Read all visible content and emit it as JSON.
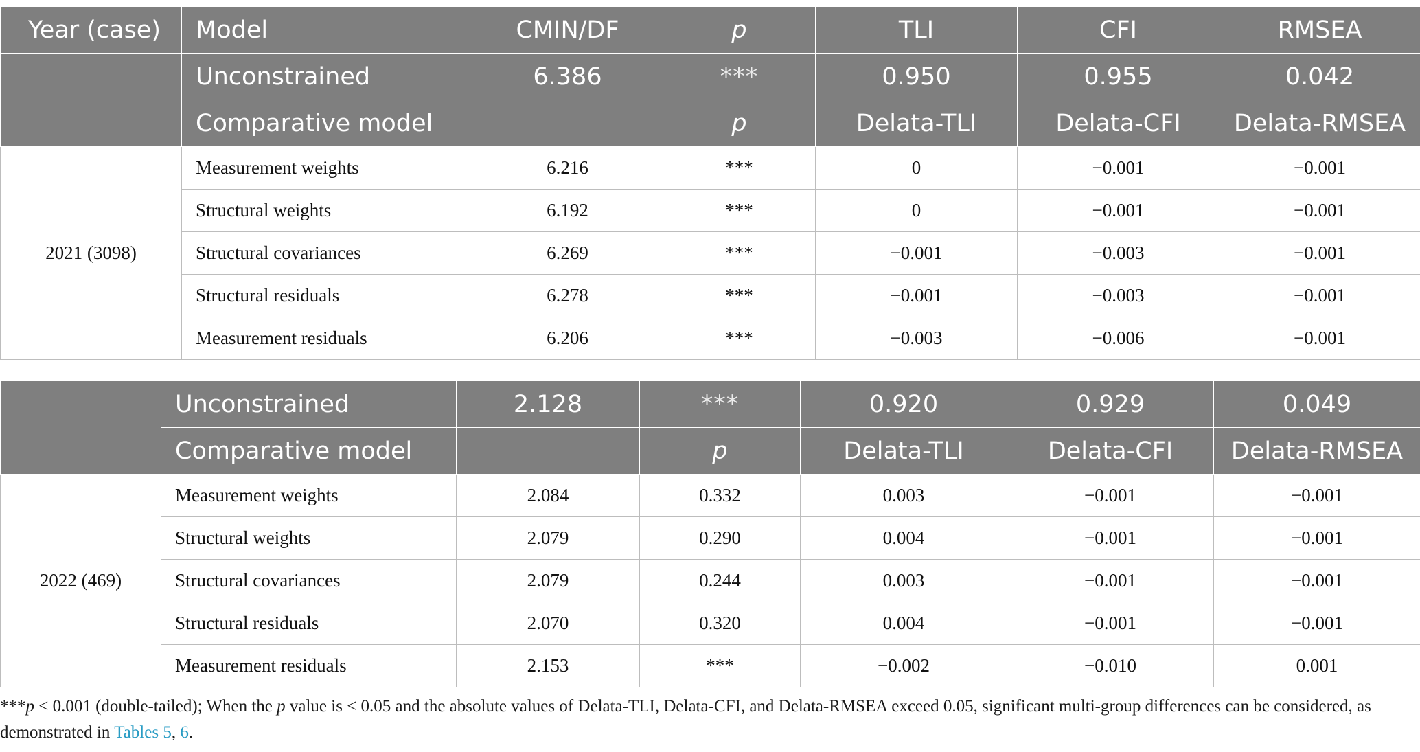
{
  "table1": {
    "header": {
      "year_case": "Year (case)",
      "model": "Model",
      "cmin_df": "CMIN/DF",
      "p": "p",
      "tli": "TLI",
      "cfi": "CFI",
      "rmsea": "RMSEA"
    },
    "unconstrained": {
      "label": "Unconstrained",
      "cmin_df": "6.386",
      "p": "***",
      "tli": "0.950",
      "cfi": "0.955",
      "rmsea": "0.042"
    },
    "comparative": {
      "label": "Comparative model",
      "p": "p",
      "d_tli": "Delata-TLI",
      "d_cfi": "Delata-CFI",
      "d_rmsea": "Delata-RMSEA"
    },
    "group": "2021 (3098)",
    "rows": [
      {
        "model": "Measurement weights",
        "cmin_df": "6.216",
        "p": "***",
        "d_tli": "0",
        "d_cfi": "−0.001",
        "d_rmsea": "−0.001"
      },
      {
        "model": "Structural weights",
        "cmin_df": "6.192",
        "p": "***",
        "d_tli": "0",
        "d_cfi": "−0.001",
        "d_rmsea": "−0.001"
      },
      {
        "model": "Structural covariances",
        "cmin_df": "6.269",
        "p": "***",
        "d_tli": "−0.001",
        "d_cfi": "−0.003",
        "d_rmsea": "−0.001"
      },
      {
        "model": "Structural residuals",
        "cmin_df": "6.278",
        "p": "***",
        "d_tli": "−0.001",
        "d_cfi": "−0.003",
        "d_rmsea": "−0.001"
      },
      {
        "model": "Measurement residuals",
        "cmin_df": "6.206",
        "p": "***",
        "d_tli": "−0.003",
        "d_cfi": "−0.006",
        "d_rmsea": "−0.001"
      }
    ]
  },
  "table2": {
    "unconstrained": {
      "label": "Unconstrained",
      "cmin_df": "2.128",
      "p": "***",
      "tli": "0.920",
      "cfi": "0.929",
      "rmsea": "0.049"
    },
    "comparative": {
      "label": "Comparative model",
      "p": "p",
      "d_tli": "Delata-TLI",
      "d_cfi": "Delata-CFI",
      "d_rmsea": "Delata-RMSEA"
    },
    "group": "2022 (469)",
    "rows": [
      {
        "model": "Measurement weights",
        "cmin_df": "2.084",
        "p": "0.332",
        "d_tli": "0.003",
        "d_cfi": "−0.001",
        "d_rmsea": "−0.001"
      },
      {
        "model": "Structural weights",
        "cmin_df": "2.079",
        "p": "0.290",
        "d_tli": "0.004",
        "d_cfi": "−0.001",
        "d_rmsea": "−0.001"
      },
      {
        "model": "Structural covariances",
        "cmin_df": "2.079",
        "p": "0.244",
        "d_tli": "0.003",
        "d_cfi": "−0.001",
        "d_rmsea": "−0.001"
      },
      {
        "model": "Structural residuals",
        "cmin_df": "2.070",
        "p": "0.320",
        "d_tli": "0.004",
        "d_cfi": "−0.001",
        "d_rmsea": "−0.001"
      },
      {
        "model": "Measurement residuals",
        "cmin_df": "2.153",
        "p": "***",
        "d_tli": "−0.002",
        "d_cfi": "−0.010",
        "d_rmsea": "0.001"
      }
    ]
  },
  "footnote": {
    "stars": "***",
    "p": "p",
    "part1": " < 0.001 (double-tailed); When the ",
    "p2": "p",
    "part2": " value is < 0.05 and the absolute values of Delata-TLI, Delata-CFI, and Delata-RMSEA exceed 0.05, significant multi-group differences can be considered, as demonstrated in ",
    "ref1": "Tables 5",
    "sep": ", ",
    "ref2": "6",
    "end": "."
  },
  "colors": {
    "header_bg": "#7f7f7f",
    "header_text": "#ffffff",
    "link": "#2a9cc4",
    "border": "#bdbdbd"
  }
}
